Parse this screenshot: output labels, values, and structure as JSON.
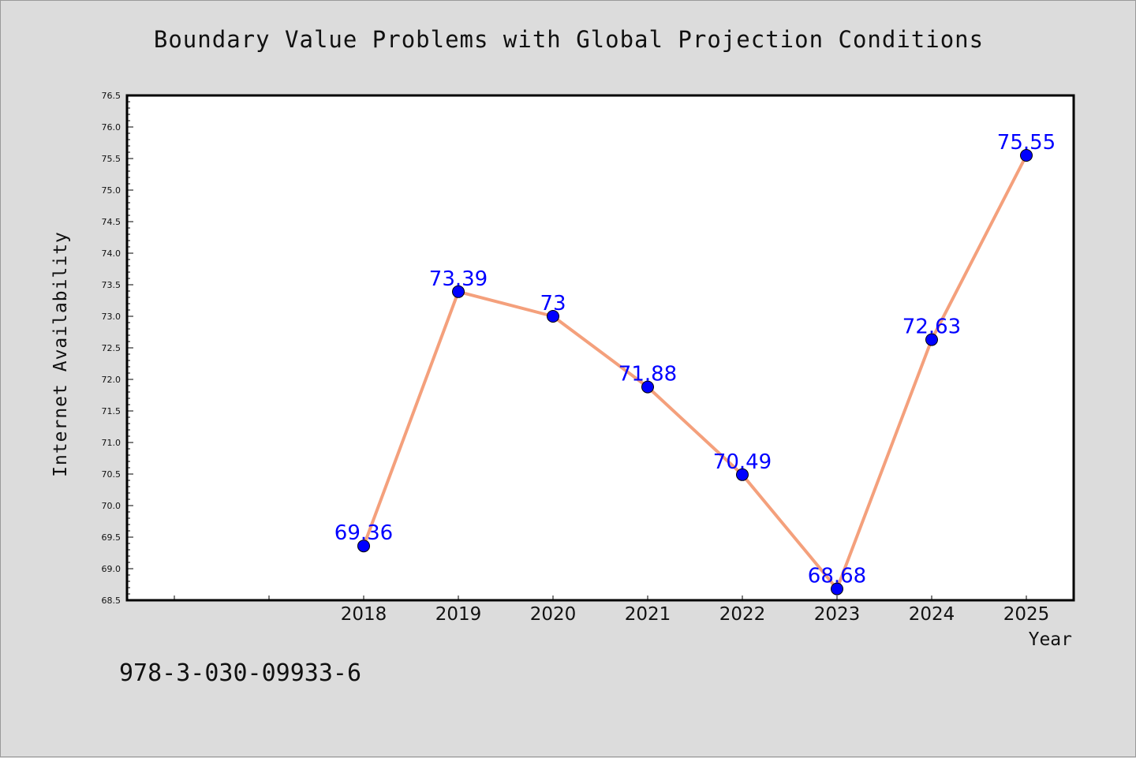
{
  "chart_data": {
    "type": "line",
    "title": "Boundary Value Problems with Global Projection Conditions",
    "xlabel": "Year",
    "ylabel": "Internet Availability",
    "x": [
      "2018",
      "2019",
      "2020",
      "2021",
      "2022",
      "2023",
      "2024",
      "2025"
    ],
    "series": [
      {
        "values": [
          69.36,
          73.39,
          73,
          71.88,
          70.49,
          68.68,
          72.63,
          75.55
        ],
        "data_labels": [
          "69.36",
          "73.39",
          "73",
          "71.88",
          "70.49",
          "68.68",
          "72.63",
          "75.55"
        ],
        "line_color": "#f4a07c",
        "marker_color": "#0000ff"
      }
    ],
    "ylim": [
      68.5,
      76.5
    ],
    "yticks": [
      "68.5",
      "69.0",
      "69.5",
      "70.0",
      "70.5",
      "71.0",
      "71.5",
      "72.0",
      "72.5",
      "73.0",
      "73.5",
      "74.0",
      "74.5",
      "75.0",
      "75.5",
      "76.0",
      "76.5"
    ],
    "x_positions": [
      2016,
      2017,
      2018,
      2019,
      2020,
      2021,
      2022,
      2023,
      2024,
      2025
    ],
    "grid": false,
    "legend": "none",
    "background": "#dcdcdc",
    "plot_background": "#ffffff"
  },
  "footer": {
    "isbn": "978-3-030-09933-6"
  }
}
